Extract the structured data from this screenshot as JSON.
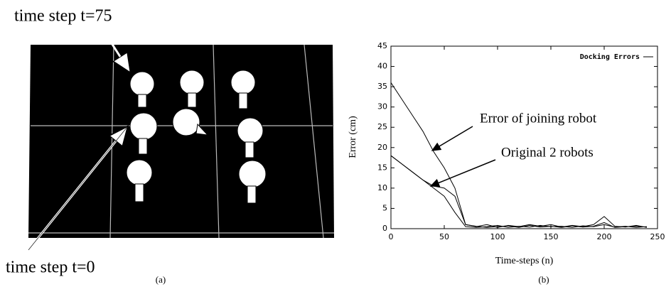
{
  "panel_a": {
    "labels": [
      "time step t=75",
      "time step t=0"
    ],
    "caption": "(a)"
  },
  "chart_data": {
    "type": "line",
    "caption": "(b)",
    "x_label": "Time-steps (n)",
    "y_label": "Error (cm)",
    "annotations": [
      "Error of joining robot",
      "Original 2 robots"
    ],
    "x": [
      0,
      10,
      20,
      30,
      40,
      50,
      60,
      70,
      80,
      90,
      100,
      110,
      120,
      130,
      140,
      150,
      160,
      170,
      180,
      190,
      200,
      210,
      220,
      230,
      240
    ],
    "series": [
      {
        "name": "Docking Errors",
        "color": "#000000",
        "values": [
          36,
          32,
          28,
          24,
          19,
          15,
          10,
          1,
          0.5,
          1,
          0.3,
          0.8,
          0.5,
          1,
          0.6,
          1,
          0.4,
          0.8,
          0.5,
          1,
          3,
          0.6,
          0.4,
          0.8,
          0.3
        ]
      },
      {
        "color": "#000000",
        "values": [
          18,
          16,
          14,
          12,
          10,
          8,
          4,
          0.5,
          0.3,
          0.5,
          0.8,
          0.3,
          0.6,
          0.4,
          0.8,
          0.5,
          0.6,
          0.3,
          0.7,
          0.5,
          1,
          0.4,
          0.6,
          0.3,
          0.5
        ]
      },
      {
        "color": "#000000",
        "values": [
          18,
          16,
          14,
          12,
          10.5,
          10,
          8,
          1,
          0.6,
          0.3,
          0.5,
          0.7,
          0.3,
          0.8,
          0.4,
          0.6,
          0.3,
          0.7,
          0.4,
          0.6,
          1.5,
          0.3,
          0.5,
          0.6,
          0.4
        ]
      }
    ],
    "xlim": [
      0,
      250
    ],
    "xticks": [
      0,
      50,
      100,
      150,
      200,
      250
    ],
    "ylim": [
      0,
      45
    ],
    "yticks": [
      0,
      5,
      10,
      15,
      20,
      25,
      30,
      35,
      40,
      45
    ],
    "legend": "upper right"
  }
}
